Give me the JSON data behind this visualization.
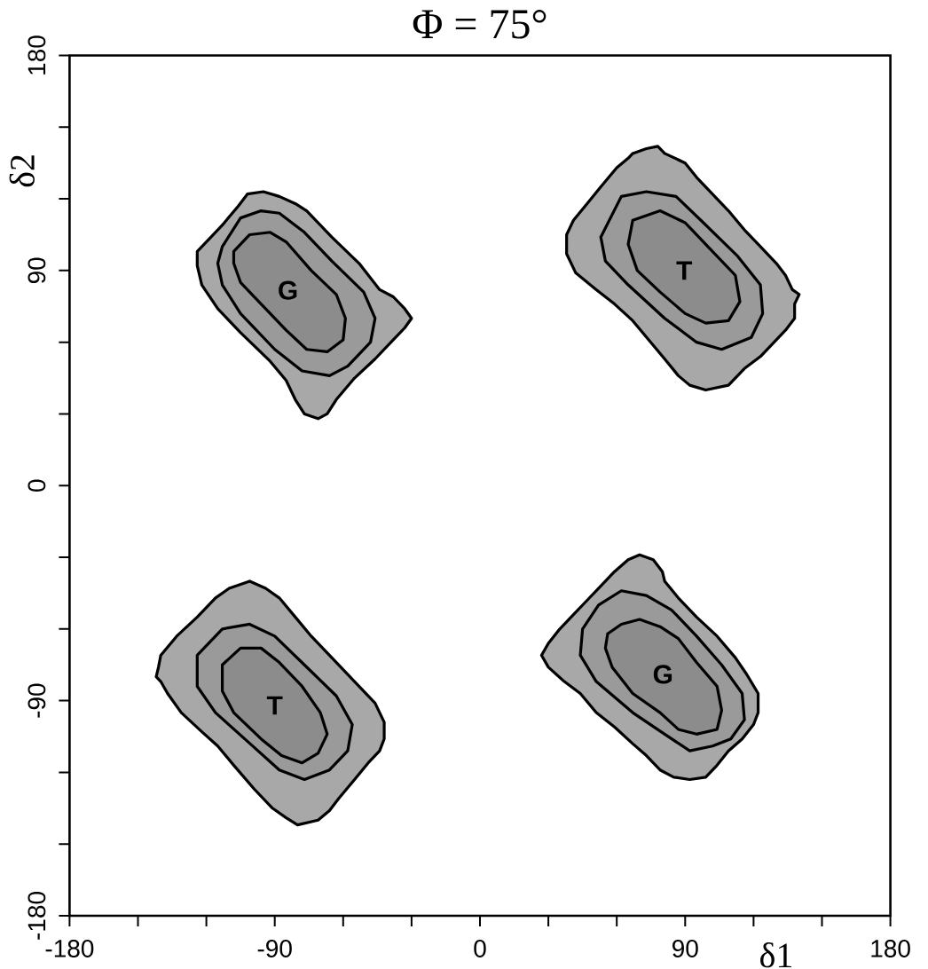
{
  "chart_data": {
    "type": "area",
    "title": "Φ = 75°",
    "xlabel": "δ1",
    "ylabel": "δ2",
    "xlim": [
      -180,
      180
    ],
    "ylim": [
      -180,
      180
    ],
    "xticks": [
      -180,
      {
        "value": -150,
        "label": null
      },
      {
        "value": -120,
        "label": null
      },
      -90,
      {
        "value": -60,
        "label": null
      },
      {
        "value": -30,
        "label": null
      },
      0,
      {
        "value": 30,
        "label": null
      },
      {
        "value": 60,
        "label": null
      },
      90,
      {
        "value": 120,
        "label": null
      },
      {
        "value": 150,
        "label": null
      },
      180
    ],
    "yticks": [
      -180,
      {
        "value": -150,
        "label": null
      },
      {
        "value": -120,
        "label": null
      },
      -90,
      {
        "value": -60,
        "label": null
      },
      {
        "value": -30,
        "label": null
      },
      0,
      {
        "value": 30,
        "label": null
      },
      {
        "value": 60,
        "label": null
      },
      90,
      {
        "value": 120,
        "label": null
      },
      {
        "value": 150,
        "label": null
      },
      180
    ],
    "series": [
      {
        "color": "#a8a8a8",
        "x": [
          -102,
          -95,
          -88,
          -81,
          -76,
          -65,
          -53,
          -44,
          -38,
          -33,
          -30,
          -33,
          -38,
          -46,
          -55,
          -63,
          -67,
          -71,
          -77,
          -81,
          -83,
          -85,
          -92,
          -105,
          -115,
          -122,
          -124,
          -124,
          -120,
          -113,
          -106,
          -102
        ],
        "values": [
          122,
          123,
          121,
          118,
          115,
          104,
          93,
          82,
          79,
          74,
          70,
          66,
          61,
          53,
          45,
          36,
          30,
          28,
          30,
          36,
          40,
          44,
          52,
          64,
          74,
          84,
          92,
          98,
          102,
          109,
          117,
          122
        ]
      },
      {
        "color": "#9a9a9a",
        "x": [
          -113,
          -105,
          -96,
          -88,
          -77,
          -65,
          -51,
          -46,
          -48,
          -58,
          -66,
          -78,
          -90,
          -105,
          -113,
          -115,
          -113
        ],
        "values": [
          100,
          112,
          115,
          114,
          106,
          94,
          81,
          70,
          60,
          50,
          46,
          48,
          57,
          72,
          84,
          93,
          100
        ]
      },
      {
        "color": "#8c8c8c",
        "x": [
          -108,
          -101,
          -92,
          -85,
          -74,
          -63,
          -59,
          -60,
          -67,
          -76,
          -85,
          -96,
          -105,
          -108,
          -108
        ],
        "values": [
          98,
          105,
          106,
          102,
          90,
          80,
          70,
          61,
          56,
          57,
          65,
          76,
          85,
          93,
          98
        ]
      },
      {
        "color": "#a8a8a8",
        "x": [
          67,
          73,
          78,
          81,
          90,
          95,
          102,
          109,
          116,
          123,
          130,
          134,
          137,
          140,
          138,
          138,
          134,
          129,
          123,
          116,
          109,
          99,
          92,
          87,
          81,
          74,
          67,
          59,
          51,
          42,
          38,
          38,
          41,
          47,
          53,
          60,
          65,
          67
        ],
        "values": [
          139,
          141,
          142,
          139,
          135,
          129,
          122,
          115,
          107,
          100,
          93,
          88,
          82,
          80,
          76,
          70,
          65,
          60,
          54,
          49,
          42,
          40,
          42,
          46,
          53,
          61,
          69,
          76,
          82,
          89,
          97,
          105,
          111,
          118,
          125,
          133,
          137,
          139
        ]
      },
      {
        "color": "#9a9a9a",
        "x": [
          53,
          62,
          73,
          86,
          98,
          113,
          123,
          124,
          119,
          106,
          95,
          81,
          65,
          55,
          53
        ],
        "values": [
          104,
          121,
          123,
          121,
          110,
          96,
          84,
          72,
          62,
          57,
          60,
          70,
          84,
          94,
          104
        ]
      },
      {
        "color": "#8c8c8c",
        "x": [
          67,
          79,
          90,
          102,
          112,
          114,
          109,
          99,
          90,
          79,
          69,
          65,
          67
        ],
        "values": [
          111,
          115,
          110,
          98,
          88,
          77,
          69,
          68,
          72,
          81,
          90,
          101,
          111
        ]
      },
      {
        "color": "#a8a8a8",
        "x": [
          -110,
          -101,
          -94,
          -88,
          -81,
          -74,
          -65,
          -55,
          -46,
          -42,
          -42,
          -44,
          -49,
          -55,
          -62,
          -66,
          -71,
          -80,
          -85,
          -91,
          -99,
          -108,
          -115,
          -122,
          -131,
          -137,
          -140,
          -142,
          -141,
          -140,
          -133,
          -124,
          -116,
          -110
        ],
        "values": [
          -43,
          -40,
          -43,
          -47,
          -55,
          -63,
          -72,
          -82,
          -91,
          -99,
          -106,
          -111,
          -116,
          -123,
          -131,
          -136,
          -140,
          -142,
          -139,
          -135,
          -127,
          -117,
          -109,
          -103,
          -95,
          -87,
          -82,
          -80,
          -76,
          -71,
          -63,
          -55,
          -47,
          -43
        ]
      },
      {
        "color": "#9a9a9a",
        "x": [
          -124,
          -113,
          -101,
          -90,
          -77,
          -63,
          -56,
          -58,
          -66,
          -77,
          -88,
          -102,
          -116,
          -124,
          -124
        ],
        "values": [
          -71,
          -60,
          -58,
          -63,
          -75,
          -88,
          -100,
          -111,
          -119,
          -123,
          -119,
          -107,
          -95,
          -84,
          -71
        ]
      },
      {
        "color": "#8c8c8c",
        "x": [
          -113,
          -105,
          -96,
          -88,
          -78,
          -70,
          -67,
          -71,
          -78,
          -87,
          -96,
          -108,
          -113,
          -113
        ],
        "values": [
          -75,
          -68,
          -68,
          -74,
          -84,
          -95,
          -104,
          -112,
          -116,
          -113,
          -106,
          -95,
          -86,
          -75
        ]
      },
      {
        "color": "#a8a8a8",
        "x": [
          65,
          70,
          76,
          80,
          81,
          87,
          95,
          104,
          112,
          117,
          122,
          122,
          120,
          115,
          109,
          104,
          99,
          92,
          85,
          79,
          73,
          67,
          59,
          51,
          44,
          37,
          30,
          27,
          30,
          35,
          41,
          47,
          53,
          59,
          65
        ],
        "values": [
          -31,
          -29,
          -31,
          -36,
          -40,
          -47,
          -55,
          -63,
          -72,
          -79,
          -87,
          -95,
          -100,
          -106,
          -111,
          -117,
          -122,
          -123,
          -122,
          -119,
          -113,
          -108,
          -101,
          -95,
          -87,
          -82,
          -76,
          -71,
          -66,
          -60,
          -54,
          -48,
          -42,
          -36,
          -31
        ]
      },
      {
        "color": "#9a9a9a",
        "x": [
          45,
          52,
          62,
          73,
          84,
          95,
          106,
          115,
          116,
          110,
          102,
          92,
          81,
          67,
          51,
          44,
          45
        ],
        "values": [
          -60,
          -50,
          -44,
          -46,
          -52,
          -63,
          -75,
          -87,
          -98,
          -106,
          -109,
          -111,
          -104,
          -95,
          -82,
          -71,
          -60
        ]
      },
      {
        "color": "#8c8c8c",
        "x": [
          56,
          62,
          70,
          79,
          87,
          95,
          104,
          106,
          104,
          95,
          87,
          79,
          67,
          58,
          55,
          56
        ],
        "values": [
          -62,
          -58,
          -56,
          -59,
          -64,
          -74,
          -84,
          -94,
          -102,
          -104,
          -102,
          -95,
          -87,
          -76,
          -68,
          -62
        ]
      }
    ],
    "annotations": [
      "G",
      "T",
      "T",
      "G"
    ]
  }
}
